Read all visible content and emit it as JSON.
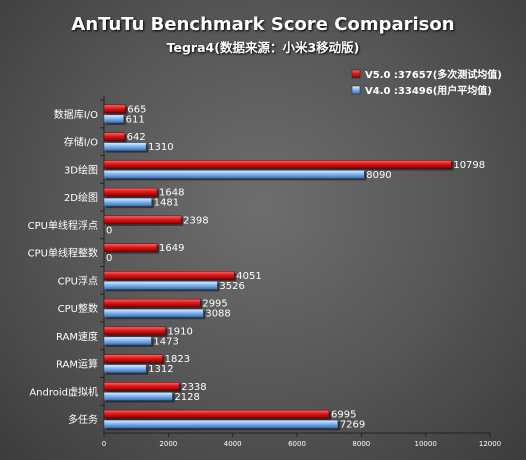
{
  "chart_data": {
    "type": "bar",
    "orientation": "horizontal",
    "title": "AnTuTu Benchmark Score Comparison",
    "subtitle": "Tegra4(数据来源：小米3移动版)",
    "categories": [
      "数据库I/O",
      "存储I/O",
      "3D绘图",
      "2D绘图",
      "CPU单线程浮点",
      "CPU单线程整数",
      "CPU浮点",
      "CPU整数",
      "RAM速度",
      "RAM运算",
      "Android虚拟机",
      "多任务"
    ],
    "series": [
      {
        "name": "V5.0 :37657(多次测试均值)",
        "color": "#d81414",
        "values": [
          665,
          642,
          10798,
          1648,
          2398,
          1649,
          4051,
          2995,
          1910,
          1823,
          2338,
          6995
        ]
      },
      {
        "name": "V4.0 :33496(用户平均值)",
        "color": "#6aa6e8",
        "values": [
          611,
          1310,
          8090,
          1481,
          0,
          0,
          3526,
          3088,
          1473,
          1312,
          2128,
          7269
        ]
      }
    ],
    "xlim": [
      0,
      12000
    ],
    "xticks": [
      0,
      2000,
      4000,
      6000,
      8000,
      10000,
      12000
    ],
    "grid": false,
    "legend_position": "top-right"
  }
}
